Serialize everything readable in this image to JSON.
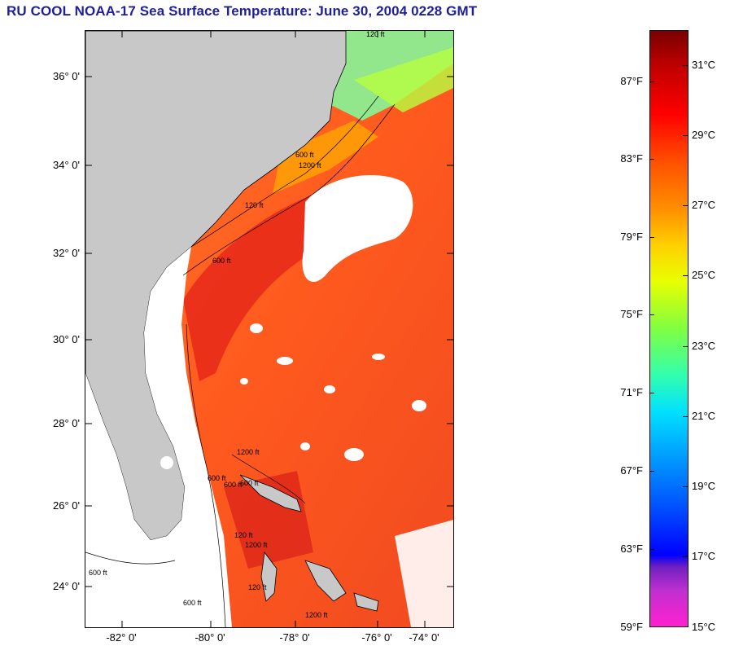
{
  "title": "RU COOL  NOAA-17  Sea Surface Temperature:  June 30, 2004 0228 GMT",
  "map": {
    "lat_labels": [
      "36° 0'",
      "34° 0'",
      "32° 0'",
      "30° 0'",
      "28° 0'",
      "26° 0'",
      "24° 0'"
    ],
    "lon_labels": [
      "-82° 0'",
      "-80° 0'",
      "-78° 0'",
      "-76° 0'",
      "-74° 0'"
    ],
    "isobath_labels": [
      "120 ft",
      "600 ft",
      "1200 ft",
      "120 ft",
      "600 ft",
      "1200 ft",
      "600 ft",
      "600 ft",
      "120 ft",
      "1200 ft",
      "600 ft",
      "600 ft",
      "120 ft",
      "1200 ft",
      "600 ft"
    ],
    "colors": {
      "land": "#c8c8c8",
      "no_data": "#ffffff",
      "warm": "#ff5a1e",
      "hot": "#ee2a1a"
    }
  },
  "colorbar": {
    "fahrenheit": [
      "87°F",
      "83°F",
      "79°F",
      "75°F",
      "71°F",
      "67°F",
      "63°F",
      "59°F"
    ],
    "celsius": [
      "31°C",
      "29°C",
      "27°C",
      "25°C",
      "23°C",
      "21°C",
      "19°C",
      "17°C",
      "15°C"
    ]
  }
}
